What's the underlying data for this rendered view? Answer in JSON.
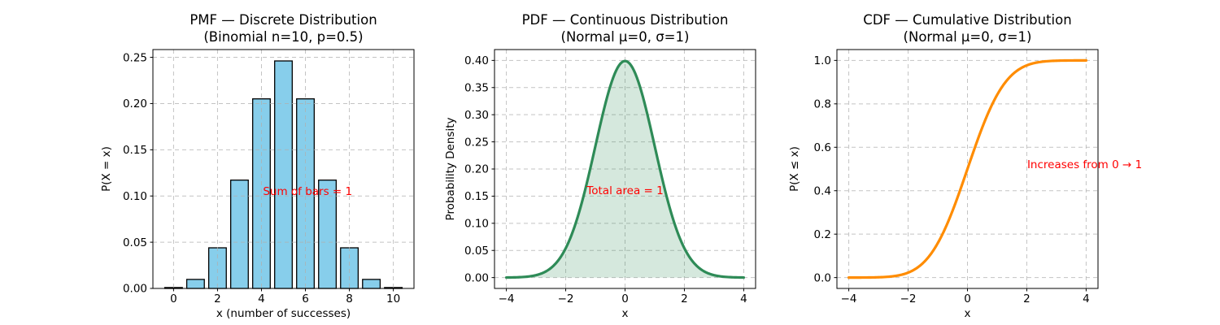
{
  "figure": {
    "background": "#ffffff",
    "grid_color": "#b0b0b0",
    "annotation_color": "#ff0000"
  },
  "chart_data": [
    {
      "name": "pmf",
      "type": "bar",
      "title": "PMF — Discrete Distribution",
      "subtitle": "(Binomial n=10, p=0.5)",
      "xlabel": "x (number of successes)",
      "ylabel": "P(X = x)",
      "categories": [
        0,
        1,
        2,
        3,
        4,
        5,
        6,
        7,
        8,
        9,
        10
      ],
      "values": [
        0.000977,
        0.009766,
        0.043945,
        0.117188,
        0.205078,
        0.246094,
        0.205078,
        0.117188,
        0.043945,
        0.009766,
        0.000977
      ],
      "bar_width": 0.8,
      "bar_color": "#87CEEB",
      "bar_edge_color": "#000000",
      "xlim": [
        -0.94,
        10.94
      ],
      "ylim": [
        0,
        0.2584
      ],
      "xticks": {
        "values": [
          0,
          2,
          4,
          6,
          8,
          10
        ],
        "labels": [
          "0",
          "2",
          "4",
          "6",
          "8",
          "10"
        ]
      },
      "yticks": {
        "values": [
          0,
          0.05,
          0.1,
          0.15,
          0.2,
          0.25
        ],
        "labels": [
          "0.00",
          "0.05",
          "0.10",
          "0.15",
          "0.20",
          "0.25"
        ]
      },
      "grid": "dashed",
      "annotation": {
        "text": "Sum of bars = 1",
        "color": "#ff0000",
        "x": 6.1,
        "y": 0.105
      }
    },
    {
      "name": "pdf",
      "type": "area",
      "title": "PDF — Continuous Distribution",
      "subtitle": "(Normal μ=0, σ=1)",
      "xlabel": "x",
      "ylabel": "Probability Density",
      "function": "normal_pdf",
      "params": {
        "mu": 0,
        "sigma": 1
      },
      "x_range": [
        -4,
        4
      ],
      "peak_value": 0.3989,
      "line_color": "#2E8B57",
      "fill_color": "rgba(46,139,87,0.2)",
      "xlim": [
        -4.4,
        4.4
      ],
      "ylim": [
        -0.02,
        0.42
      ],
      "xticks": {
        "values": [
          -4,
          -2,
          0,
          2,
          4
        ],
        "labels": [
          "−4",
          "−2",
          "0",
          "2",
          "4"
        ]
      },
      "yticks": {
        "values": [
          0,
          0.05,
          0.1,
          0.15,
          0.2,
          0.25,
          0.3,
          0.35,
          0.4
        ],
        "labels": [
          "0.00",
          "0.05",
          "0.10",
          "0.15",
          "0.20",
          "0.25",
          "0.30",
          "0.35",
          "0.40"
        ]
      },
      "grid": "dashed",
      "annotation": {
        "text": "Total area = 1",
        "color": "#ff0000",
        "x": 0,
        "y": 0.16
      }
    },
    {
      "name": "cdf",
      "type": "line",
      "title": "CDF — Cumulative Distribution",
      "subtitle": "(Normal μ=0, σ=1)",
      "xlabel": "x",
      "ylabel": "P(X ≤ x)",
      "function": "normal_cdf",
      "params": {
        "mu": 0,
        "sigma": 1
      },
      "x_range": [
        -4,
        4
      ],
      "y_start": 0.0,
      "y_end": 1.0,
      "line_color": "#FF8C00",
      "xlim": [
        -4.4,
        4.4
      ],
      "ylim": [
        -0.05,
        1.05
      ],
      "xticks": {
        "values": [
          -4,
          -2,
          0,
          2,
          4
        ],
        "labels": [
          "−4",
          "−2",
          "0",
          "2",
          "4"
        ]
      },
      "yticks": {
        "values": [
          0,
          0.2,
          0.4,
          0.6,
          0.8,
          1.0
        ],
        "labels": [
          "0.0",
          "0.2",
          "0.4",
          "0.6",
          "0.8",
          "1.0"
        ]
      },
      "grid": "dashed",
      "annotation": {
        "text": "Increases from 0 → 1",
        "color": "#ff0000",
        "x": 3.95,
        "y": 0.52
      }
    }
  ]
}
